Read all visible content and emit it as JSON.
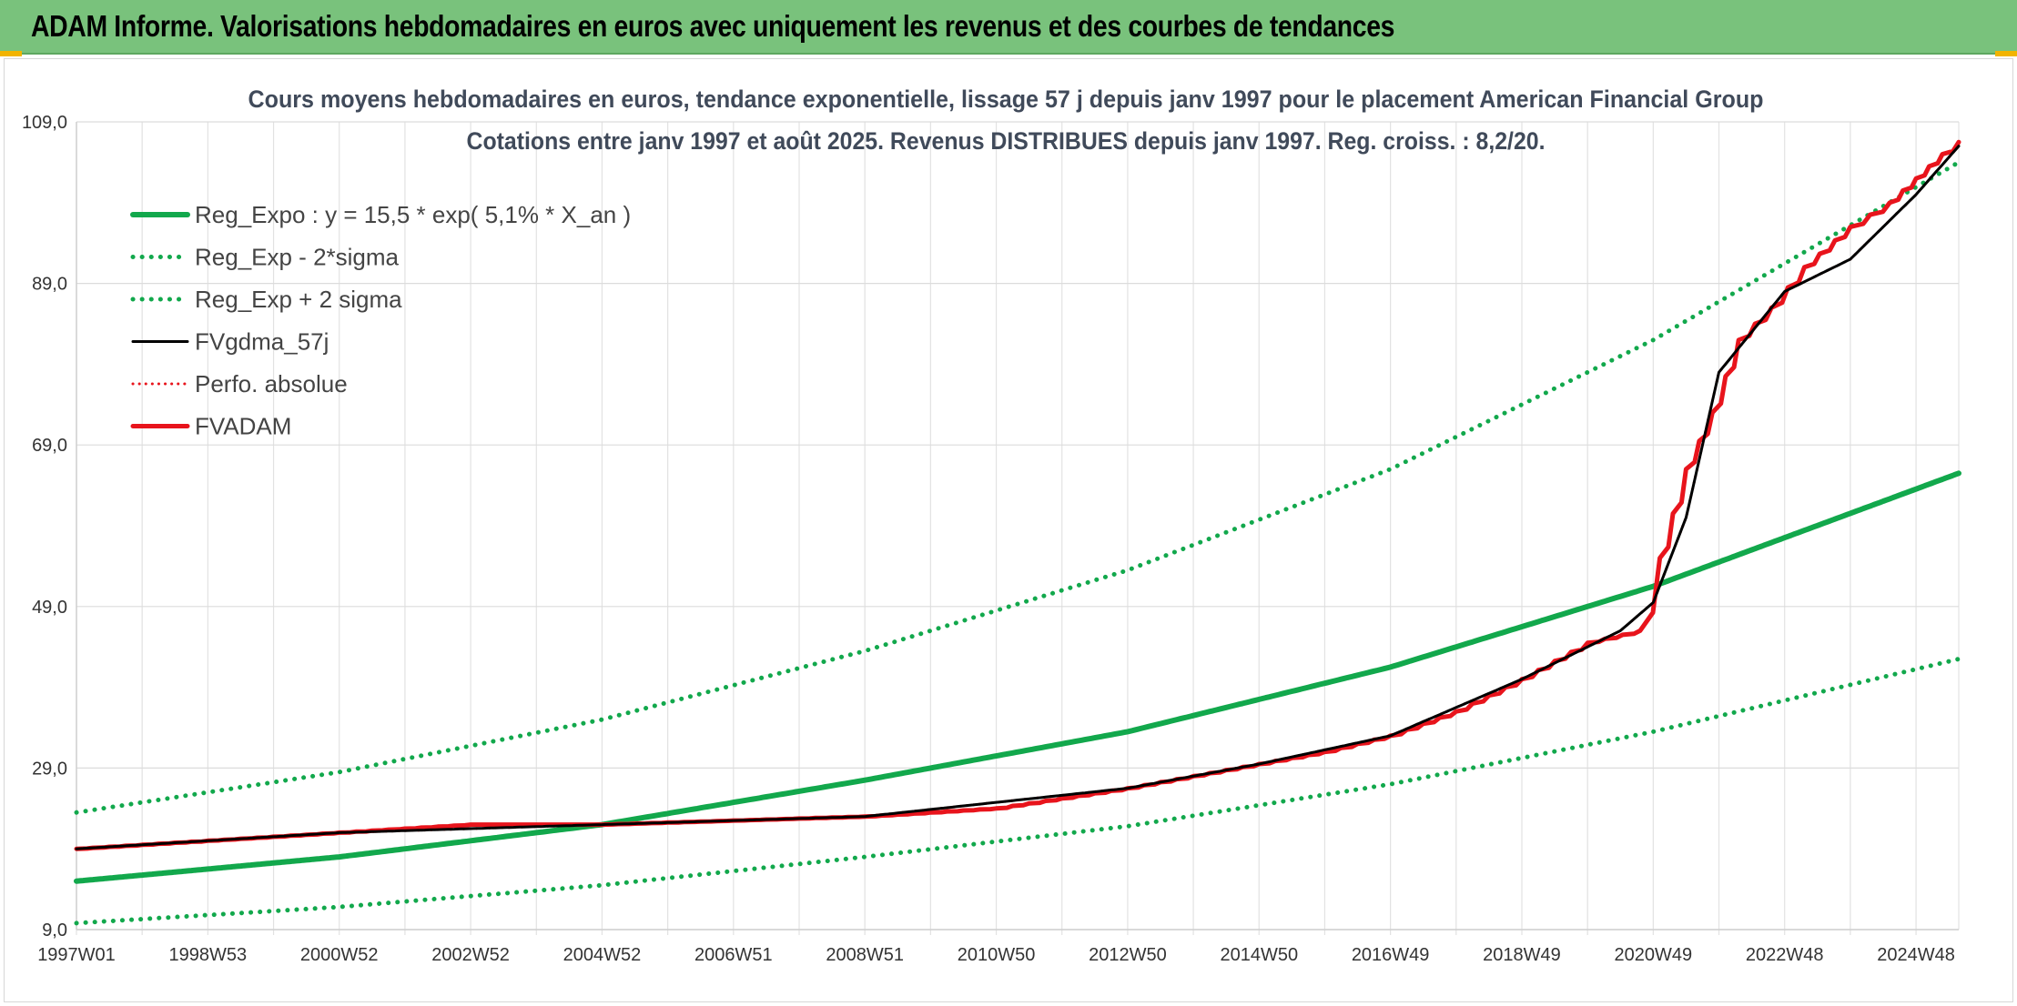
{
  "header": {
    "title": "ADAM Informe. Valorisations hebdomadaires en euros avec uniquement les revenus et des courbes de tendances"
  },
  "chart_data": {
    "type": "line",
    "title_line1": "Cours moyens hebdomadaires en euros, tendance exponentielle, lissage 57 j depuis janv 1997 pour le placement American Financial Group",
    "title_line2": "Cotations entre janv 1997 et août 2025. Revenus DISTRIBUES depuis janv 1997. Reg. croiss. : 8,2/20.",
    "x_range": [
      1997.0,
      2025.65
    ],
    "x_ticks": [
      {
        "label": "1997W01",
        "x": 1997.0
      },
      {
        "label": "1998W53",
        "x": 1999.0
      },
      {
        "label": "2000W52",
        "x": 2001.0
      },
      {
        "label": "2002W52",
        "x": 2003.0
      },
      {
        "label": "2004W52",
        "x": 2005.0
      },
      {
        "label": "2006W51",
        "x": 2007.0
      },
      {
        "label": "2008W51",
        "x": 2009.0
      },
      {
        "label": "2010W50",
        "x": 2011.0
      },
      {
        "label": "2012W50",
        "x": 2013.0
      },
      {
        "label": "2014W50",
        "x": 2015.0
      },
      {
        "label": "2016W49",
        "x": 2017.0
      },
      {
        "label": "2018W49",
        "x": 2019.0
      },
      {
        "label": "2020W49",
        "x": 2021.0
      },
      {
        "label": "2022W48",
        "x": 2023.0
      },
      {
        "label": "2024W48",
        "x": 2025.0
      }
    ],
    "ylim": [
      9.0,
      109.0
    ],
    "y_ticks": [
      "9,0",
      "29,0",
      "49,0",
      "69,0",
      "89,0",
      "109,0"
    ],
    "y_tick_values": [
      9,
      29,
      49,
      69,
      89,
      109
    ],
    "grid": true,
    "legend_position": "top-left",
    "legend": [
      {
        "label": "Reg_Expo : y = 15,5 * exp( 5,1% *  X_an )",
        "color": "#12a84c",
        "style": "solid-thick"
      },
      {
        "label": "Reg_Exp - 2*sigma",
        "color": "#12a84c",
        "style": "dotted"
      },
      {
        "label": "Reg_Exp + 2 sigma",
        "color": "#12a84c",
        "style": "dotted"
      },
      {
        "label": "FVgdma_57j",
        "color": "#000000",
        "style": "solid"
      },
      {
        "label": "Perfo. absolue",
        "color": "#e8141c",
        "style": "dotted"
      },
      {
        "label": "FVADAM",
        "color": "#e8141c",
        "style": "solid-thick"
      }
    ],
    "series": [
      {
        "name": "Reg_Expo : y = 15,5 * exp( 5,1% *  X_an )",
        "color": "#12a84c",
        "x": [
          1997.0,
          2001.0,
          2005.0,
          2009.0,
          2013.0,
          2017.0,
          2021.0,
          2025.65
        ],
        "values": [
          15.0,
          18.0,
          22.0,
          27.5,
          33.5,
          41.5,
          51.5,
          65.5
        ]
      },
      {
        "name": "Reg_Exp - 2*sigma",
        "color": "#12a84c",
        "x": [
          1997.0,
          2001.0,
          2005.0,
          2009.0,
          2013.0,
          2017.0,
          2021.0,
          2025.65
        ],
        "values": [
          9.8,
          11.8,
          14.5,
          18.0,
          21.8,
          27.0,
          33.5,
          42.5
        ]
      },
      {
        "name": "Reg_Exp + 2 sigma",
        "color": "#12a84c",
        "x": [
          1997.0,
          2001.0,
          2005.0,
          2009.0,
          2013.0,
          2017.0,
          2021.0,
          2025.65
        ],
        "values": [
          23.5,
          28.5,
          35.0,
          43.5,
          53.5,
          66.0,
          82.0,
          104.0
        ]
      },
      {
        "name": "FVgdma_57j",
        "color": "#000000",
        "x": [
          1997.0,
          2001.0,
          2005.0,
          2009.0,
          2013.0,
          2015.0,
          2017.0,
          2019.0,
          2020.5,
          2021.0,
          2021.5,
          2022.0,
          2022.5,
          2023.0,
          2024.0,
          2025.0,
          2025.65
        ],
        "values": [
          19.0,
          21.0,
          22.0,
          23.0,
          26.5,
          29.5,
          33.0,
          40.0,
          46.0,
          49.5,
          60.0,
          78.0,
          83.0,
          88.0,
          92.0,
          100.0,
          106.0
        ]
      },
      {
        "name": "Perfo. absolue",
        "color": "#e8141c",
        "x": [
          1997.0,
          2001.0,
          2005.0,
          2009.0,
          2013.0,
          2015.0,
          2017.0,
          2019.0,
          2020.5,
          2021.0,
          2021.5,
          2022.0,
          2022.5,
          2023.0,
          2024.0,
          2025.0,
          2025.65
        ],
        "values": [
          19.0,
          21.0,
          22.0,
          23.0,
          26.5,
          29.5,
          33.0,
          40.0,
          46.0,
          49.5,
          60.0,
          78.0,
          83.0,
          88.0,
          92.0,
          100.0,
          106.0
        ]
      },
      {
        "name": "FVADAM",
        "color": "#e8141c",
        "x": [
          1997.0,
          1999.0,
          2001.0,
          2003.0,
          2005.0,
          2007.0,
          2009.0,
          2011.0,
          2013.0,
          2014.0,
          2015.0,
          2016.0,
          2017.0,
          2018.0,
          2019.0,
          2020.0,
          2020.8,
          2021.1,
          2021.5,
          2021.9,
          2022.3,
          2022.8,
          2023.3,
          2024.0,
          2024.6,
          2025.0,
          2025.4,
          2025.65
        ],
        "values": [
          19.0,
          20.0,
          21.0,
          22.0,
          22.0,
          22.5,
          23.0,
          24.0,
          26.5,
          28.0,
          29.5,
          31.0,
          33.0,
          36.0,
          40.0,
          44.5,
          46.0,
          55.0,
          66.0,
          73.0,
          82.0,
          86.0,
          91.0,
          96.0,
          99.0,
          102.0,
          105.0,
          106.5
        ]
      }
    ]
  }
}
